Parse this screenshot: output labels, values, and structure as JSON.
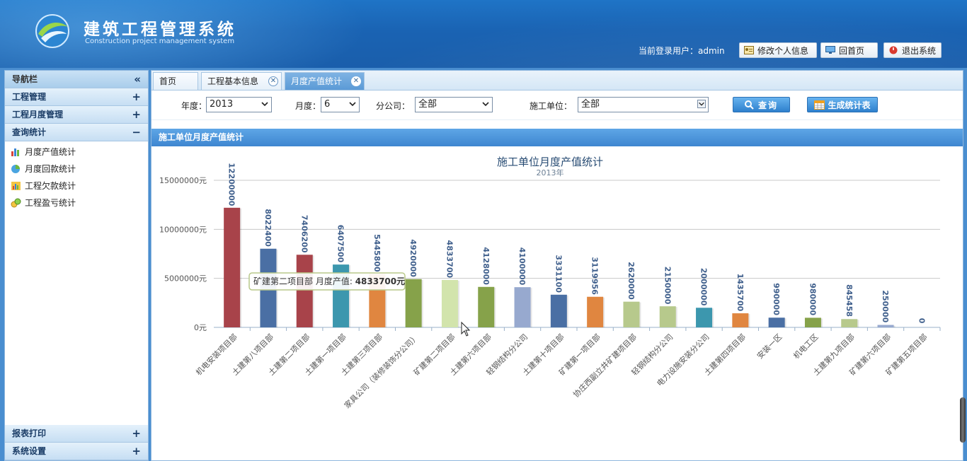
{
  "header": {
    "title": "建筑工程管理系统",
    "subtitle": "Construction project management system",
    "login_label": "当前登录用户：admin",
    "buttons": {
      "edit_profile": "修改个人信息",
      "home": "回首页",
      "logout": "退出系统"
    }
  },
  "sidebar": {
    "title": "导航栏",
    "collapse_glyph": "«",
    "sections": [
      {
        "label": "工程管理",
        "toggle": "+"
      },
      {
        "label": "工程月度管理",
        "toggle": "+"
      },
      {
        "label": "查询统计",
        "toggle": "−"
      }
    ],
    "items": [
      {
        "label": "月度产值统计"
      },
      {
        "label": "月度回款统计"
      },
      {
        "label": "工程欠款统计"
      },
      {
        "label": "工程盈亏统计"
      }
    ],
    "bottom_sections": [
      {
        "label": "报表打印",
        "toggle": "+"
      },
      {
        "label": "系统设置",
        "toggle": "+"
      }
    ]
  },
  "tabs": [
    {
      "label": "首页"
    },
    {
      "label": "工程基本信息"
    },
    {
      "label": "月度产值统计"
    }
  ],
  "filter": {
    "year_label": "年度：",
    "year_value": "2013",
    "month_label": "月度：",
    "month_value": "6",
    "branch_label": "分公司：",
    "branch_value": "全部",
    "unit_label": "施工单位：",
    "unit_value": "全部",
    "query_button": "查询",
    "report_button": "生成统计表"
  },
  "section_title": "施工单位月度产值统计",
  "chart_data": {
    "type": "bar",
    "title": "施工单位月度产值统计",
    "subtitle": "2013年",
    "ylim": [
      0,
      15000000
    ],
    "yticks": [
      0,
      5000000,
      10000000,
      15000000
    ],
    "ytick_suffix": "元",
    "grid": true,
    "categories": [
      "机电安装项目部",
      "土建第八项目部",
      "土建第二项目部",
      "土建第一项目部",
      "土建第三项目部",
      "家具公司（装修装饰分公司）",
      "矿建第二项目部",
      "土建第六项目部",
      "轻钢结构分公司",
      "土建第十项目部",
      "矿建第一项目部",
      "协庄西副立井矿建项目部",
      "轻钢结构分公司",
      "电力设施安装分公司",
      "土建第四项目部",
      "安装一区",
      "机电工区",
      "土建第九项目部",
      "矿建第六项目部",
      "矿建第五项目部"
    ],
    "values": [
      12200000,
      8022400,
      7406200,
      6407500,
      5445800,
      4920000,
      4833700,
      4128000,
      4100000,
      3331100,
      3119956,
      2620000,
      2150000,
      2000000,
      1435700,
      990000,
      980000,
      845458,
      250000,
      0
    ],
    "colors": [
      "#a8434a",
      "#4a6fa4",
      "#a8434a",
      "#3c97ae",
      "#e08640",
      "#86a24a",
      "#d2e4ac",
      "#86a24a",
      "#97a9cf",
      "#4a6fa4",
      "#e08640",
      "#b7c98c",
      "#b7c98c",
      "#3c97ae",
      "#e08640",
      "#4a6fa4",
      "#86a24a",
      "#b7c98c",
      "#97a9cf",
      "#4a6fa4"
    ],
    "tooltip": {
      "category": "矿建第二项目部",
      "label": "月度产值:",
      "value_text": "4833700元"
    }
  }
}
